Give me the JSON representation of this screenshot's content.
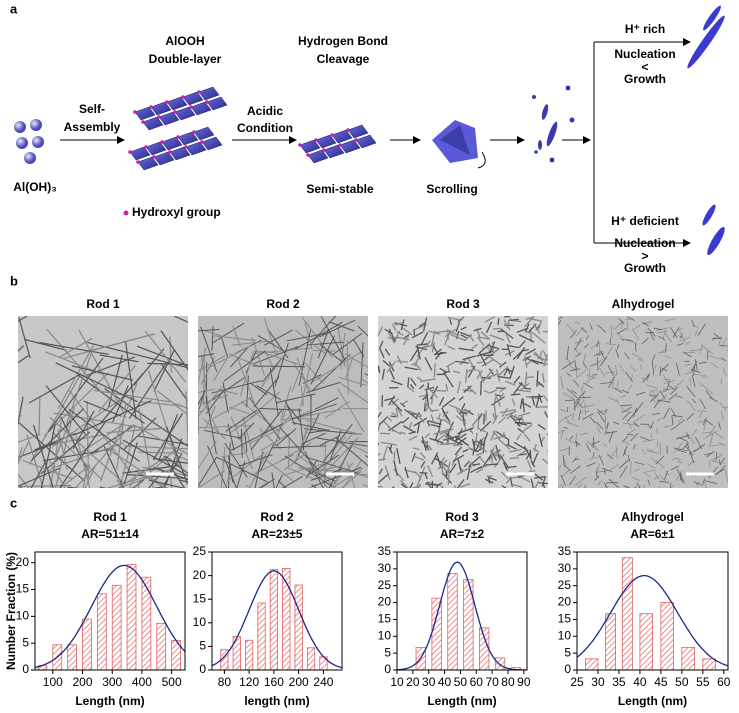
{
  "panel_labels": [
    "a",
    "b",
    "c"
  ],
  "schematic": {
    "step1": [
      "Self-",
      "Assembly"
    ],
    "layer": [
      "AlOOH",
      "Double-layer"
    ],
    "step2": [
      "Acidic",
      "Condition"
    ],
    "step3": [
      "Hydrogen Bond",
      "Cleavage"
    ],
    "semi": "Semi-stable",
    "scroll": "Scrolling",
    "precursor": "Al(OH)₃",
    "legend": "Hydroxyl group",
    "rich": {
      "title": "H⁺ rich",
      "top": "Nucleation",
      "sign": "<",
      "bottom": "Growth"
    },
    "deficient": {
      "title": "H⁺ deficient",
      "top": "Nucleation",
      "sign": ">",
      "bottom": "Growth"
    }
  },
  "tem": {
    "titles": [
      "Rod 1",
      "Rod 2",
      "Rod 3",
      "Alhydrogel"
    ]
  },
  "chart_data": [
    {
      "type": "histogram",
      "title": "Rod 1",
      "subtitle": "AR=51±14",
      "x_label": "Length (nm)",
      "y_label": "Number Fraction (%)",
      "color": "#e06060",
      "fit_color": "#1a2a8a",
      "bins": [
        40,
        90,
        140,
        190,
        240,
        290,
        340,
        390,
        440,
        490,
        540
      ],
      "counts": [
        0.8,
        4.7,
        4.7,
        9.5,
        14.2,
        15.8,
        19.7,
        17.3,
        8.7,
        5.5
      ],
      "xlim": [
        40,
        545
      ],
      "xticks": [
        100,
        200,
        300,
        400,
        500
      ],
      "ylim": [
        0,
        22
      ],
      "yticks": [
        0,
        5,
        10,
        15,
        20
      ],
      "fit": {
        "mean": 340,
        "sd": 110,
        "peak": 19.5
      }
    },
    {
      "type": "histogram",
      "title": "Rod 2",
      "subtitle": "AR=23±5",
      "x_label": "length (nm)",
      "color": "#e06060",
      "fit_color": "#1a2a8a",
      "bins": [
        70,
        90,
        110,
        130,
        150,
        170,
        190,
        210,
        230,
        250
      ],
      "counts": [
        4.3,
        7.1,
        6.3,
        14.2,
        21.3,
        21.5,
        18,
        4.7,
        2.8
      ],
      "xlim": [
        60,
        270
      ],
      "xticks": [
        80,
        120,
        160,
        200,
        240
      ],
      "ylim": [
        0,
        25
      ],
      "yticks": [
        0,
        5,
        10,
        15,
        20,
        25
      ],
      "fit": {
        "mean": 160,
        "sd": 40,
        "peak": 21
      }
    },
    {
      "type": "histogram",
      "title": "Rod 3",
      "subtitle": "AR=7±2",
      "x_label": "Length (nm)",
      "color": "#e06060",
      "fit_color": "#1a2a8a",
      "bins": [
        20,
        30,
        40,
        50,
        60,
        70,
        80,
        90
      ],
      "counts": [
        6.7,
        21.3,
        28.6,
        26.8,
        12.5,
        3.6,
        0.7
      ],
      "xlim": [
        10,
        92
      ],
      "xticks": [
        10,
        20,
        30,
        40,
        50,
        60,
        70,
        80,
        90
      ],
      "ylim": [
        0,
        35
      ],
      "yticks": [
        0,
        5,
        10,
        15,
        20,
        25,
        30,
        35
      ],
      "fit": {
        "mean": 48,
        "sd": 11,
        "peak": 32
      }
    },
    {
      "type": "histogram",
      "title": "Alhydrogel",
      "subtitle": "AR=6±1",
      "x_label": "Length (nm)",
      "color": "#e06060",
      "fit_color": "#1a2a8a",
      "bins": [
        26,
        31,
        35,
        39,
        44,
        49,
        54,
        59
      ],
      "counts": [
        3.3,
        16.7,
        33.3,
        16.7,
        20,
        6.7,
        3.3
      ],
      "xlim": [
        25,
        61
      ],
      "xticks": [
        25,
        30,
        35,
        40,
        45,
        50,
        55,
        60
      ],
      "ylim": [
        0,
        35
      ],
      "yticks": [
        0,
        5,
        10,
        15,
        20,
        25,
        30,
        35
      ],
      "fit": {
        "mean": 41,
        "sd": 8,
        "peak": 28
      }
    }
  ]
}
